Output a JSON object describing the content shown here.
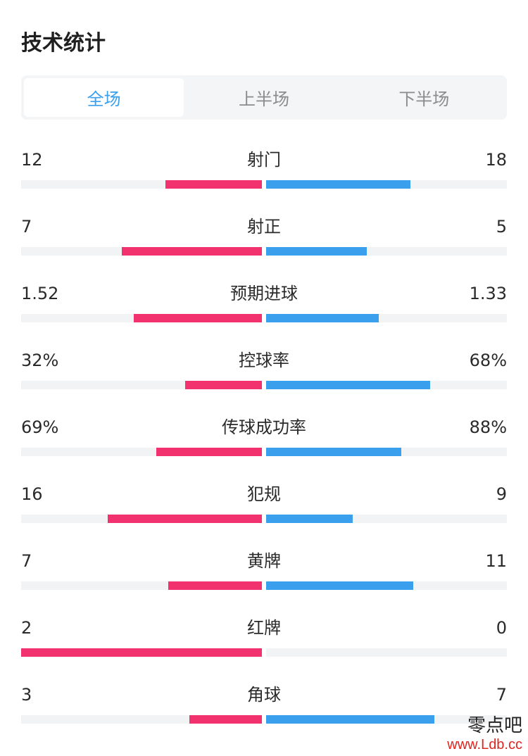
{
  "header": {
    "title": "技术统计"
  },
  "tabs": [
    {
      "label": "全场",
      "active": true
    },
    {
      "label": "上半场",
      "active": false
    },
    {
      "label": "下半场",
      "active": false
    }
  ],
  "colors": {
    "home": "#f2316f",
    "away": "#3aa0ee",
    "track": "#f2f3f5",
    "active_tab": "#3aa0ee"
  },
  "stats": [
    {
      "label": "射门",
      "home": "12",
      "away": "18",
      "home_frac": 0.4,
      "away_frac": 0.6
    },
    {
      "label": "射正",
      "home": "7",
      "away": "5",
      "home_frac": 0.583,
      "away_frac": 0.417
    },
    {
      "label": "预期进球",
      "home": "1.52",
      "away": "1.33",
      "home_frac": 0.533,
      "away_frac": 0.467
    },
    {
      "label": "控球率",
      "home": "32%",
      "away": "68%",
      "home_frac": 0.32,
      "away_frac": 0.68
    },
    {
      "label": "传球成功率",
      "home": "69%",
      "away": "88%",
      "home_frac": 0.44,
      "away_frac": 0.56
    },
    {
      "label": "犯规",
      "home": "16",
      "away": "9",
      "home_frac": 0.64,
      "away_frac": 0.36
    },
    {
      "label": "黄牌",
      "home": "7",
      "away": "11",
      "home_frac": 0.389,
      "away_frac": 0.611
    },
    {
      "label": "红牌",
      "home": "2",
      "away": "0",
      "home_frac": 1.0,
      "away_frac": 0.0
    },
    {
      "label": "角球",
      "home": "3",
      "away": "7",
      "home_frac": 0.3,
      "away_frac": 0.7
    }
  ],
  "watermark": {
    "name": "零点吧",
    "url": "www.Ldb.cc"
  }
}
